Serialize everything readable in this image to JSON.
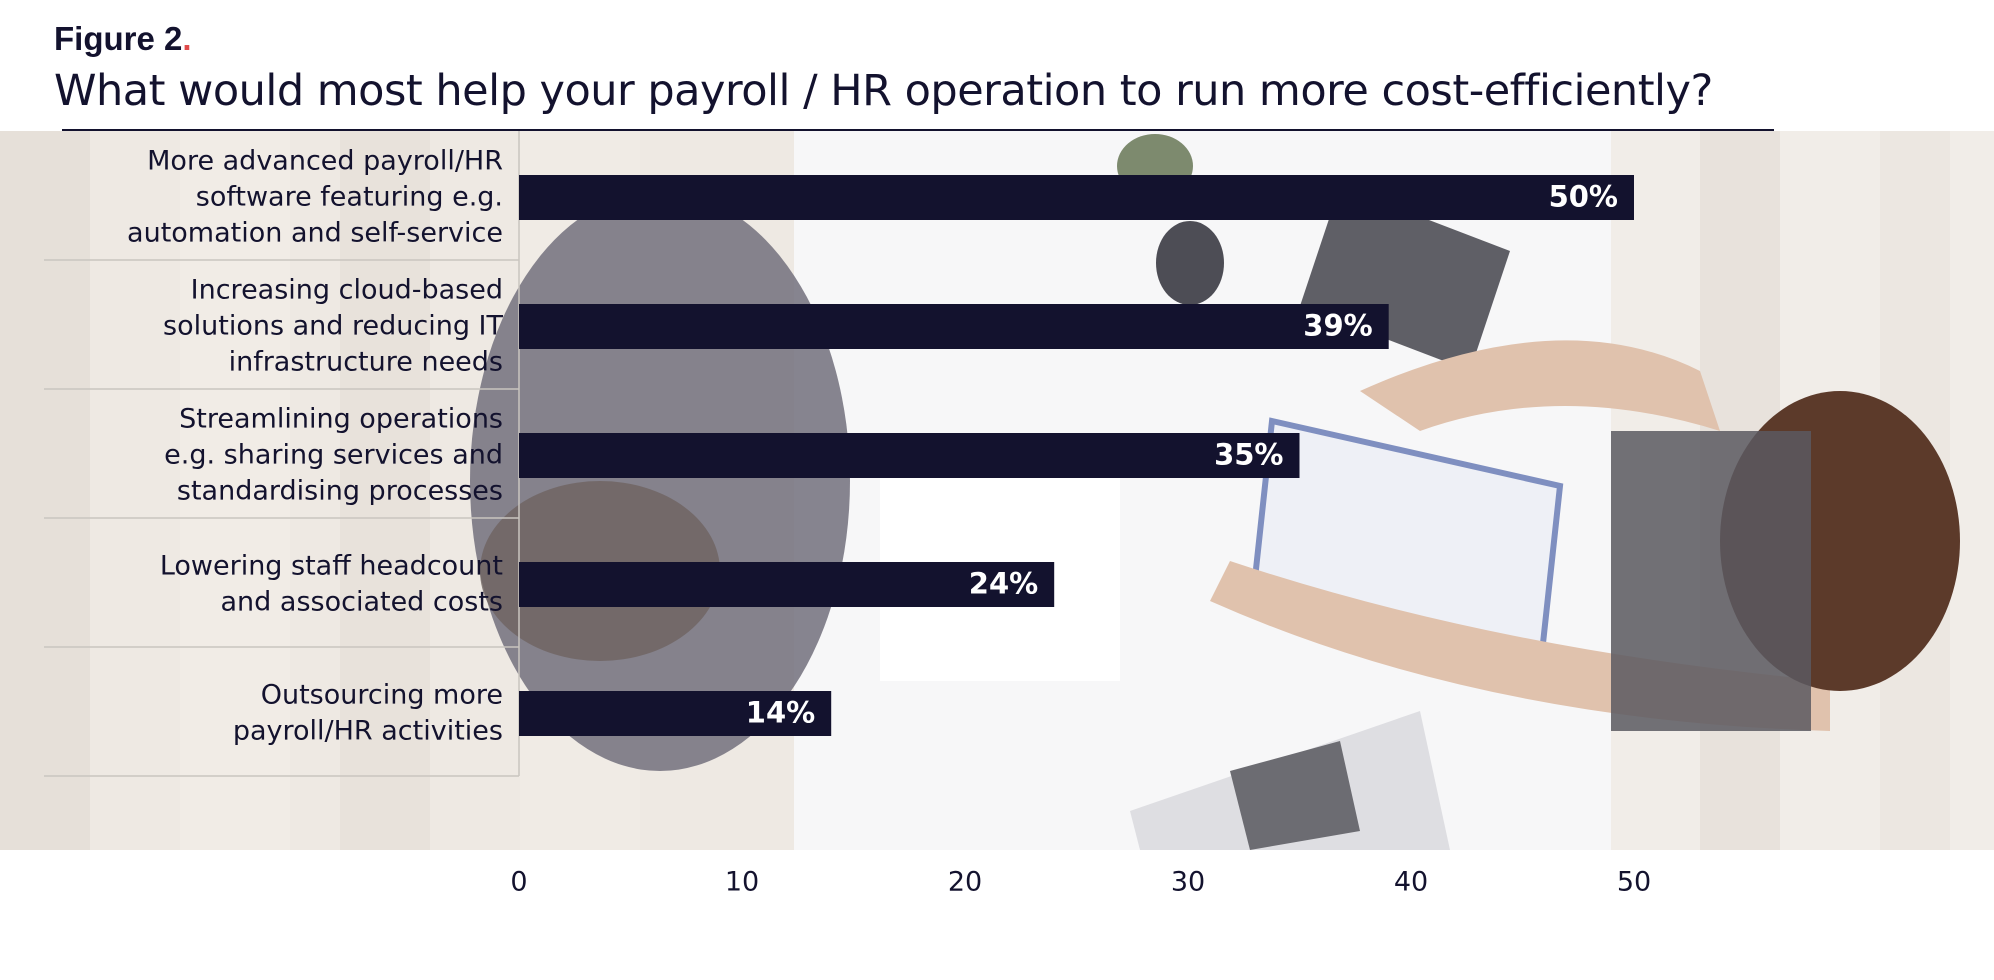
{
  "figure_label": "Figure 2",
  "figure_label_dot": ".",
  "colors": {
    "bar": "#13122e",
    "bar_label": "#ffffff",
    "text": "#13122e",
    "accent_dot": "#e04a4a",
    "row_divider": "#c9c5bf"
  },
  "chart_data": {
    "type": "bar",
    "orientation": "horizontal",
    "title": "What would most help your payroll / HR operation to run more cost-efficiently?",
    "categories": [
      "More advanced payroll/HR software featuring e.g. automation and self-service",
      "Increasing cloud-based solutions and reducing IT infrastructure needs",
      "Streamlining operations e.g. sharing services and standardising processes",
      "Lowering staff headcount and associated costs",
      "Outsourcing more payroll/HR activities"
    ],
    "category_lines": [
      [
        "More advanced payroll/HR",
        "software featuring e.g.",
        "automation and self-service"
      ],
      [
        "Increasing cloud-based",
        "solutions and reducing IT",
        "infrastructure needs"
      ],
      [
        "Streamlining operations",
        "e.g. sharing services and",
        "standardising processes"
      ],
      [
        "Lowering staff headcount",
        "and associated costs"
      ],
      [
        "Outsourcing more",
        "payroll/HR activities"
      ]
    ],
    "values": [
      50,
      39,
      35,
      24,
      14
    ],
    "value_labels": [
      "50%",
      "39%",
      "35%",
      "24%",
      "14%"
    ],
    "x_ticks": [
      0,
      10,
      20,
      30,
      40,
      50
    ],
    "xlim": [
      0,
      50
    ],
    "xlabel": "",
    "ylabel": "",
    "grid": false,
    "legend": "none"
  }
}
